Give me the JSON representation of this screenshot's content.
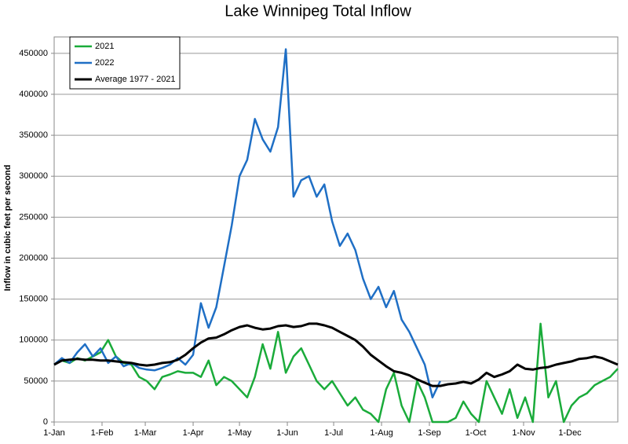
{
  "chart_data": {
    "type": "line",
    "title": "Lake Winnipeg Total Inflow",
    "y_label": "Inflow in cubic feet per second",
    "x": [
      0,
      5,
      10,
      15,
      20,
      25,
      30,
      35,
      40,
      45,
      50,
      55,
      60,
      65,
      70,
      75,
      80,
      85,
      90,
      95,
      100,
      105,
      110,
      115,
      120,
      125,
      130,
      135,
      140,
      145,
      150,
      155,
      160,
      165,
      170,
      175,
      180,
      185,
      190,
      195,
      200,
      205,
      210,
      215,
      220,
      225,
      230,
      235,
      240,
      245,
      250,
      255,
      260,
      265,
      270,
      275,
      280,
      285,
      290,
      295,
      300,
      305,
      310,
      315,
      320,
      325,
      330,
      335,
      340,
      345,
      350,
      355,
      360,
      365
    ],
    "xlim": [
      0,
      365
    ],
    "xticks": [
      {
        "value": 0,
        "label": "1-Jan"
      },
      {
        "value": 31,
        "label": "1-Feb"
      },
      {
        "value": 59,
        "label": "1-Mar"
      },
      {
        "value": 90,
        "label": "1-Apr"
      },
      {
        "value": 120,
        "label": "1-May"
      },
      {
        "value": 151,
        "label": "1-Jun"
      },
      {
        "value": 181,
        "label": "1-Jul"
      },
      {
        "value": 212,
        "label": "1-Aug"
      },
      {
        "value": 243,
        "label": "1-Sep"
      },
      {
        "value": 273,
        "label": "1-Oct"
      },
      {
        "value": 304,
        "label": "1-Nov"
      },
      {
        "value": 334,
        "label": "1-Dec"
      }
    ],
    "ylim": [
      0,
      470000
    ],
    "yticks": [
      0,
      50000,
      100000,
      150000,
      200000,
      250000,
      300000,
      350000,
      400000,
      450000
    ],
    "grid": true,
    "legend": "upper left",
    "series": [
      {
        "name": "2021",
        "color": "#1aab3a",
        "width": 2.5,
        "values": [
          70000,
          75000,
          72000,
          78000,
          75000,
          80000,
          85000,
          100000,
          80000,
          72000,
          70000,
          55000,
          50000,
          40000,
          55000,
          58000,
          62000,
          60000,
          60000,
          55000,
          75000,
          45000,
          55000,
          50000,
          40000,
          30000,
          55000,
          95000,
          65000,
          110000,
          60000,
          80000,
          90000,
          70000,
          50000,
          40000,
          50000,
          35000,
          20000,
          30000,
          15000,
          10000,
          0,
          40000,
          60000,
          20000,
          0,
          50000,
          30000,
          0,
          0,
          0,
          5000,
          25000,
          10000,
          0,
          50000,
          30000,
          10000,
          40000,
          5000,
          30000,
          0,
          120000,
          30000,
          50000,
          0,
          20000,
          30000,
          35000,
          45000,
          50000,
          55000,
          65000
        ]
      },
      {
        "name": "2022",
        "color": "#1f6fc5",
        "width": 2.5,
        "values": [
          70000,
          78000,
          72000,
          85000,
          95000,
          80000,
          90000,
          72000,
          80000,
          68000,
          72000,
          66000,
          64000,
          63000,
          66000,
          70000,
          78000,
          70000,
          82000,
          145000,
          115000,
          140000,
          190000,
          240000,
          300000,
          320000,
          370000,
          345000,
          330000,
          360000,
          455000,
          275000,
          295000,
          300000,
          275000,
          290000,
          245000,
          215000,
          230000,
          210000,
          175000,
          150000,
          165000,
          140000,
          160000,
          125000,
          110000,
          90000,
          70000,
          30000,
          50000,
          null,
          null,
          null,
          null,
          null,
          null,
          null,
          null,
          null,
          null,
          null,
          null,
          null,
          null,
          null,
          null,
          null,
          null,
          null,
          null,
          null,
          null,
          null
        ]
      },
      {
        "name": "Average 1977 - 2021",
        "color": "#000000",
        "width": 3,
        "values": [
          70000,
          75000,
          76000,
          77000,
          76000,
          76000,
          75000,
          75000,
          74000,
          73000,
          72000,
          70000,
          69000,
          70000,
          72000,
          73000,
          76000,
          82000,
          90000,
          97000,
          102000,
          103000,
          107000,
          112000,
          116000,
          118000,
          115000,
          113000,
          114000,
          117000,
          118000,
          116000,
          117000,
          120000,
          120000,
          118000,
          115000,
          110000,
          105000,
          100000,
          92000,
          82000,
          75000,
          68000,
          62000,
          60000,
          57000,
          52000,
          48000,
          44000,
          44000,
          46000,
          47000,
          49000,
          47000,
          52000,
          60000,
          55000,
          58000,
          62000,
          70000,
          65000,
          64000,
          66000,
          67000,
          70000,
          72000,
          74000,
          77000,
          78000,
          80000,
          78000,
          74000,
          70000
        ]
      }
    ]
  }
}
